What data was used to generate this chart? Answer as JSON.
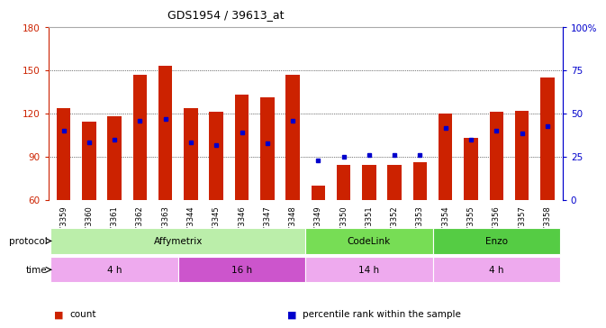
{
  "title": "GDS1954 / 39613_at",
  "samples": [
    "GSM73359",
    "GSM73360",
    "GSM73361",
    "GSM73362",
    "GSM73363",
    "GSM73344",
    "GSM73345",
    "GSM73346",
    "GSM73347",
    "GSM73348",
    "GSM73349",
    "GSM73350",
    "GSM73351",
    "GSM73352",
    "GSM73353",
    "GSM73354",
    "GSM73355",
    "GSM73356",
    "GSM73357",
    "GSM73358"
  ],
  "count_values": [
    124,
    114,
    118,
    147,
    153,
    124,
    121,
    133,
    131,
    147,
    70,
    84,
    84,
    84,
    86,
    120,
    103,
    121,
    122,
    145
  ],
  "percentile_values": [
    108,
    100,
    102,
    115,
    116,
    100,
    98,
    107,
    99,
    115,
    87,
    90,
    91,
    91,
    91,
    110,
    102,
    108,
    106,
    111
  ],
  "ylim_left": [
    60,
    180
  ],
  "ylim_right": [
    0,
    100
  ],
  "yticks_left": [
    60,
    90,
    120,
    150,
    180
  ],
  "yticks_right": [
    0,
    25,
    50,
    75,
    100
  ],
  "bar_color": "#cc2200",
  "percentile_color": "#0000cc",
  "protocol_groups": [
    {
      "label": "Affymetrix",
      "start": 0,
      "end": 9,
      "color": "#bbeeaa"
    },
    {
      "label": "CodeLink",
      "start": 10,
      "end": 14,
      "color": "#77dd55"
    },
    {
      "label": "Enzo",
      "start": 15,
      "end": 19,
      "color": "#55cc44"
    }
  ],
  "time_groups": [
    {
      "label": "4 h",
      "start": 0,
      "end": 4,
      "color": "#eeaaee"
    },
    {
      "label": "16 h",
      "start": 5,
      "end": 9,
      "color": "#cc55cc"
    },
    {
      "label": "14 h",
      "start": 10,
      "end": 14,
      "color": "#eeaaee"
    },
    {
      "label": "4 h",
      "start": 15,
      "end": 19,
      "color": "#eeaaee"
    }
  ],
  "protocol_label": "protocol",
  "time_label": "time",
  "legend_items": [
    {
      "label": "count",
      "color": "#cc2200"
    },
    {
      "label": "percentile rank within the sample",
      "color": "#0000cc"
    }
  ],
  "bg_color": "#ffffff",
  "tick_color_left": "#cc2200",
  "tick_color_right": "#0000cc",
  "right_tick_labels": [
    "0",
    "25",
    "50",
    "75",
    "100%"
  ]
}
